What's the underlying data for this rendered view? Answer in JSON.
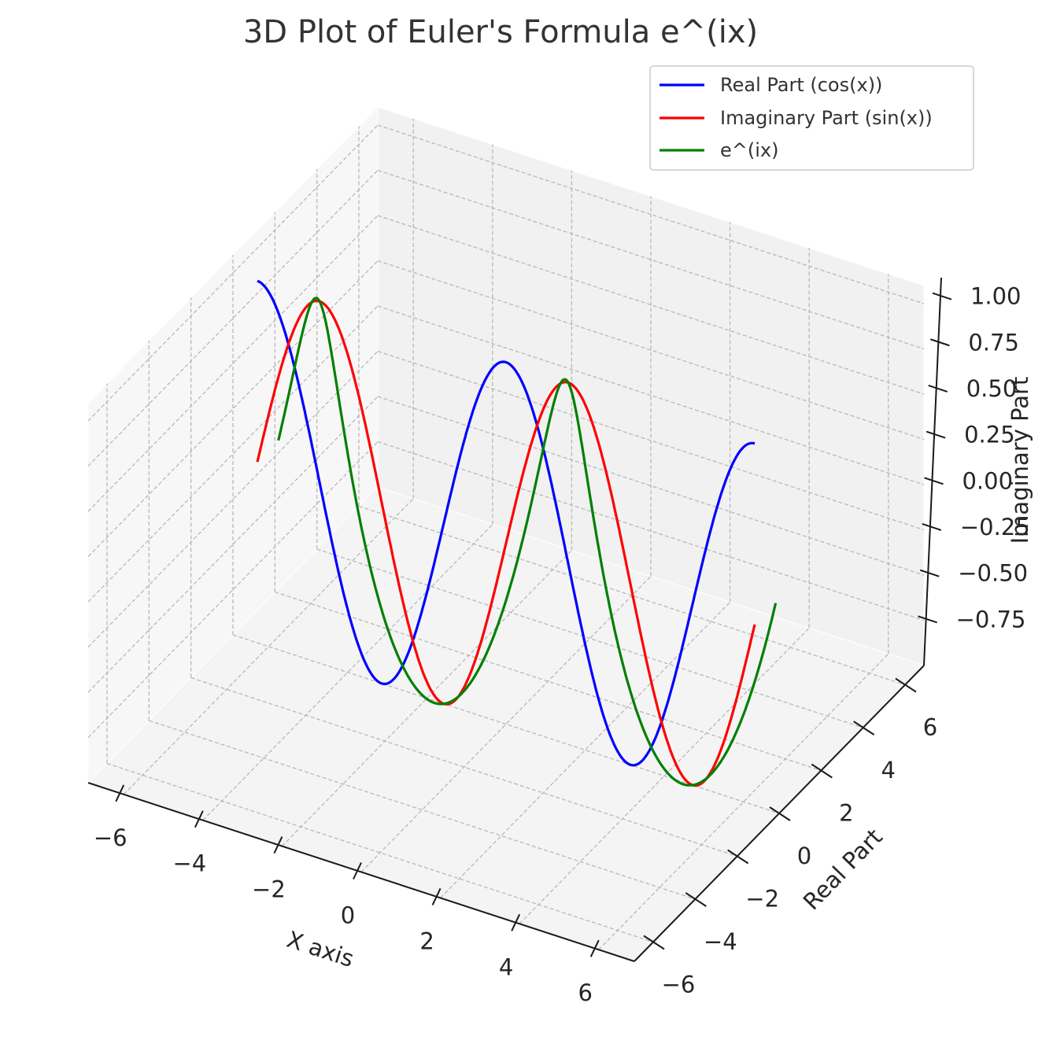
{
  "chart_data": {
    "type": "line",
    "projection": "3d",
    "title": "3D Plot of Euler's Formula e^(ix)",
    "xlabel": "X axis",
    "ylabel": "Real Part",
    "zlabel": "Imaginary Part",
    "xlim": [
      -6.9,
      6.9
    ],
    "ylim": [
      -6.9,
      6.9
    ],
    "zlim": [
      -1.0,
      1.1
    ],
    "x_ticks": [
      -6,
      -4,
      -2,
      0,
      2,
      4,
      6
    ],
    "y_ticks": [
      -6,
      -4,
      -2,
      0,
      2,
      4,
      6
    ],
    "z_ticks": [
      -0.75,
      -0.5,
      -0.25,
      0.0,
      0.25,
      0.5,
      0.75,
      1.0
    ],
    "x_tick_labels": [
      "−6",
      "−4",
      "−2",
      "0",
      "2",
      "4",
      "6"
    ],
    "y_tick_labels": [
      "−6",
      "−4",
      "−2",
      "0",
      "2",
      "4",
      "6"
    ],
    "z_tick_labels": [
      "−0.75",
      "−0.50",
      "−0.25",
      "0.00",
      "0.25",
      "0.50",
      "0.75",
      "1.00"
    ],
    "grid": true,
    "legend_position": "top-right",
    "series": [
      {
        "name": "Real Part (cos(x))",
        "color": "#0000ff",
        "x": [
          -6.283,
          -4.712,
          -3.142,
          -1.571,
          0,
          1.571,
          3.142,
          4.712,
          6.283
        ],
        "y": [
          0,
          0,
          0,
          0,
          0,
          0,
          0,
          0,
          0
        ],
        "z": [
          1,
          0,
          -1,
          0,
          1,
          0,
          -1,
          0,
          1
        ],
        "function": "cos"
      },
      {
        "name": "Imaginary Part (sin(x))",
        "color": "#ff0000",
        "x": [
          -6.283,
          -4.712,
          -3.142,
          -1.571,
          0,
          1.571,
          3.142,
          4.712,
          6.283
        ],
        "y": [
          0,
          0,
          0,
          0,
          0,
          0,
          0,
          0,
          0
        ],
        "z": [
          0,
          1,
          0,
          -1,
          0,
          1,
          0,
          -1,
          0
        ],
        "function": "sin"
      },
      {
        "name": "e^(ix)",
        "color": "#008000",
        "x": [
          -6.283,
          -4.712,
          -3.142,
          -1.571,
          0,
          1.571,
          3.142,
          4.712,
          6.283
        ],
        "y": [
          1,
          0,
          -1,
          0,
          1,
          0,
          -1,
          0,
          1
        ],
        "z": [
          0,
          1,
          0,
          -1,
          0,
          1,
          0,
          -1,
          0
        ],
        "function": "euler"
      }
    ]
  }
}
